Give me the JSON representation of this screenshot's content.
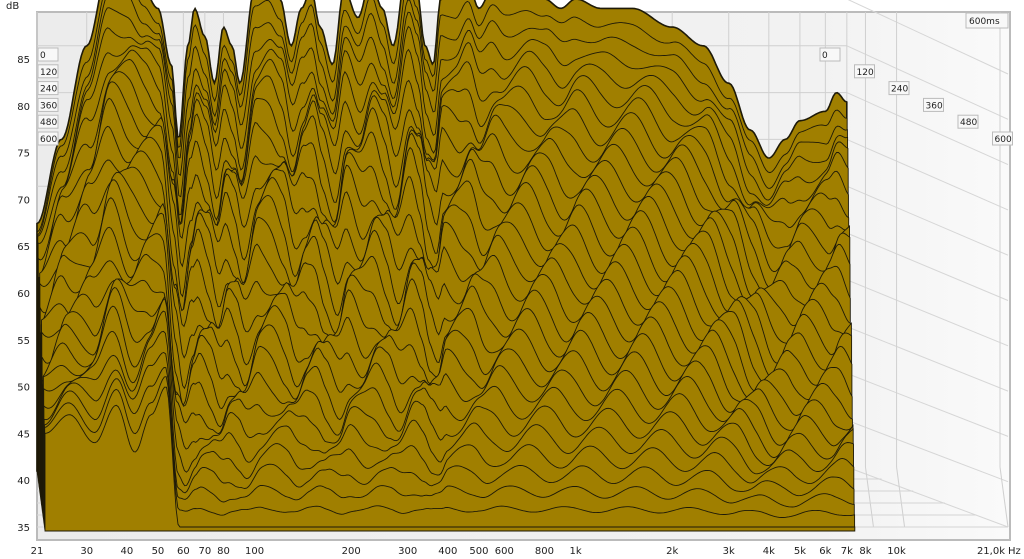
{
  "chart_data": {
    "type": "area",
    "ylabel": "dB",
    "xunit": "Hz",
    "time_unit_label": "600ms",
    "x_scale": "log",
    "xlim": [
      21,
      21000
    ],
    "ylim": [
      33,
      90
    ],
    "grid": true,
    "y_ticks": [
      35,
      40,
      45,
      50,
      55,
      60,
      65,
      70,
      75,
      80,
      85
    ],
    "x_ticks": [
      {
        "v": 21,
        "label": "21"
      },
      {
        "v": 30,
        "label": "30"
      },
      {
        "v": 40,
        "label": "40"
      },
      {
        "v": 50,
        "label": "50"
      },
      {
        "v": 60,
        "label": "60"
      },
      {
        "v": 70,
        "label": "70"
      },
      {
        "v": 80,
        "label": "80"
      },
      {
        "v": 100,
        "label": "100"
      },
      {
        "v": 200,
        "label": "200"
      },
      {
        "v": 300,
        "label": "300"
      },
      {
        "v": 400,
        "label": "400"
      },
      {
        "v": 500,
        "label": "500"
      },
      {
        "v": 600,
        "label": "600"
      },
      {
        "v": 800,
        "label": "800"
      },
      {
        "v": 1000,
        "label": "1k"
      },
      {
        "v": 2000,
        "label": "2k"
      },
      {
        "v": 3000,
        "label": "3k"
      },
      {
        "v": 4000,
        "label": "4k"
      },
      {
        "v": 5000,
        "label": "5k"
      },
      {
        "v": 6000,
        "label": "6k"
      },
      {
        "v": 7000,
        "label": "7k"
      },
      {
        "v": 8000,
        "label": "8k"
      },
      {
        "v": 10000,
        "label": "10k"
      },
      {
        "v": 21000,
        "label": "21,0k"
      }
    ],
    "time_labels": [
      "0",
      "120",
      "240",
      "360",
      "480",
      "600"
    ],
    "time_range_ms": [
      0,
      600
    ],
    "fill_color": "#a07f00",
    "line_color": "#1e1a08",
    "series": [
      {
        "time_ms": 0,
        "freq": [
          21,
          25,
          30,
          35,
          40,
          45,
          50,
          55,
          58,
          62,
          65,
          70,
          75,
          80,
          85,
          90,
          100,
          110,
          120,
          130,
          140,
          150,
          160,
          175,
          190,
          210,
          230,
          250,
          270,
          300,
          320,
          340,
          360,
          380,
          420,
          460,
          500,
          550,
          600,
          700,
          800,
          900,
          1000,
          1200,
          1500,
          2000,
          2500,
          3000,
          3500,
          4000,
          4500,
          5000,
          6000,
          6500,
          7000
        ],
        "db": [
          61,
          70,
          80,
          88,
          89,
          86,
          84,
          78,
          70,
          80,
          84,
          81,
          76,
          82,
          80,
          76,
          86,
          87,
          85,
          80,
          84,
          86,
          82,
          78,
          86,
          83,
          87,
          84,
          80,
          89,
          86,
          80,
          78,
          85,
          85,
          87,
          84,
          86,
          85,
          86,
          85,
          84,
          85,
          84,
          84,
          82,
          80,
          76,
          71,
          68,
          70,
          72,
          73,
          75,
          74
        ]
      },
      {
        "time_ms": 600,
        "freq": [
          21,
          25,
          30,
          35,
          40,
          45,
          50,
          55,
          58,
          7000
        ],
        "db": [
          45,
          47,
          44,
          48,
          43,
          47,
          50,
          35,
          35,
          35
        ]
      }
    ]
  }
}
